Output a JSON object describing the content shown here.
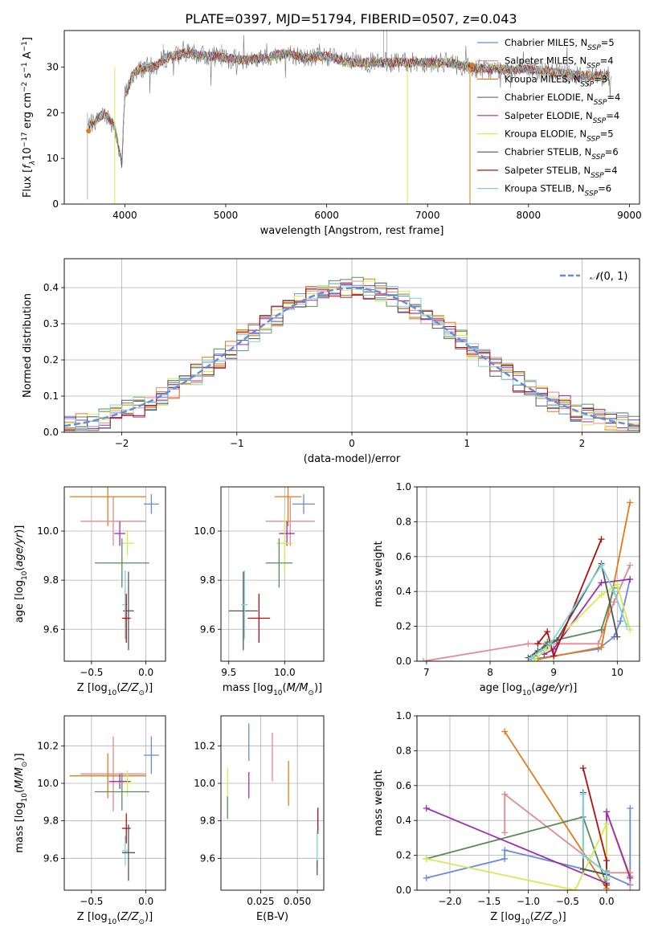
{
  "figure_title": "PLATE=0397, MJD=51794, FIBERID=0507, z=0.043",
  "colors": {
    "chabrier_miles": "#6a8bd8",
    "salpeter_miles": "#e08a93",
    "kroupa_miles": "#e07b1a",
    "chabrier_elodie": "#5a8a5a",
    "salpeter_elodie": "#9b30b0",
    "kroupa_elodie": "#d4ec50",
    "chabrier_stelib": "#555555",
    "salpeter_stelib": "#b01010",
    "kroupa_stelib": "#80d0d8",
    "normal": "#6a8bd8",
    "grid": "#b0b0b0"
  },
  "chart_data": [
    {
      "id": "spectrum",
      "type": "line",
      "title": "PLATE=0397, MJD=51794, FIBERID=0507, z=0.043",
      "xlabel": "wavelength [Angstrom, rest frame]",
      "ylabel": "Flux [f_λ 10^-17 erg cm^-2 s^-1 A^-1]",
      "xlim": [
        3400,
        9100
      ],
      "ylim": [
        0,
        38
      ],
      "xticks": [
        "4000",
        "5000",
        "6000",
        "7000",
        "8000",
        "9000"
      ],
      "yticks": [
        "0",
        "10",
        "20",
        "30"
      ],
      "grid": false,
      "legend_position": "upper-right",
      "spectrum_keypoints": {
        "x": [
          3630,
          3700,
          3800,
          3900,
          3970,
          4000,
          4100,
          4200,
          4300,
          4400,
          4600,
          4800,
          5000,
          5200,
          5400,
          5600,
          5800,
          6000,
          6200,
          6400,
          6600,
          6800,
          7000,
          7200,
          7400,
          7600,
          7800,
          8000,
          8200,
          8400,
          8600,
          8800
        ],
        "y": [
          17,
          18,
          20,
          17,
          9,
          24,
          29,
          30,
          30,
          32,
          33,
          32.5,
          32,
          31.5,
          32,
          33,
          32,
          32.5,
          31,
          31,
          31,
          31,
          31,
          31,
          30,
          29.5,
          29.5,
          29.5,
          29,
          28.5,
          28,
          28
        ]
      },
      "legend": [
        {
          "label": "Chabrier MILES, N",
          "sub": "SSP",
          "suffix": "=5",
          "color_key": "chabrier_miles"
        },
        {
          "label": "Salpeter MILES, N",
          "sub": "SSP",
          "suffix": "=4",
          "color_key": "salpeter_miles"
        },
        {
          "label": "Kroupa MILES, N",
          "sub": "SSP",
          "suffix": "=3",
          "color_key": "kroupa_miles"
        },
        {
          "label": "Chabrier ELODIE, N",
          "sub": "SSP",
          "suffix": "=4",
          "color_key": "chabrier_elodie"
        },
        {
          "label": "Salpeter ELODIE, N",
          "sub": "SSP",
          "suffix": "=4",
          "color_key": "salpeter_elodie"
        },
        {
          "label": "Kroupa ELODIE, N",
          "sub": "SSP",
          "suffix": "=5",
          "color_key": "kroupa_elodie"
        },
        {
          "label": "Chabrier STELIB, N",
          "sub": "SSP",
          "suffix": "=6",
          "color_key": "chabrier_stelib"
        },
        {
          "label": "Salpeter STELIB, N",
          "sub": "SSP",
          "suffix": "=4",
          "color_key": "salpeter_stelib"
        },
        {
          "label": "Kroupa STELIB, N",
          "sub": "SSP",
          "suffix": "=6",
          "color_key": "kroupa_stelib"
        }
      ]
    },
    {
      "id": "residuals",
      "type": "line",
      "xlabel": "(data-model)/error",
      "ylabel": "Normed distribution",
      "xlim": [
        -2.5,
        2.5
      ],
      "ylim": [
        0,
        0.48
      ],
      "xticks": [
        "−2",
        "−1",
        "0",
        "1",
        "2"
      ],
      "yticks": [
        "0.0",
        "0.1",
        "0.2",
        "0.3",
        "0.4"
      ],
      "grid": true,
      "legend": [
        {
          "label": "N(0,1)",
          "color_key": "normal"
        }
      ],
      "legend_position": "upper-right",
      "bin_width": 0.1
    },
    {
      "id": "age_vs_Z",
      "type": "scatter",
      "xlabel": "Z [log10(Z/Z⊙)]",
      "ylabel": "age [log10(age/yr)]",
      "xlim": [
        -0.75,
        0.18
      ],
      "ylim": [
        9.47,
        10.18
      ],
      "xticks": [
        "−0.5",
        "0.0"
      ],
      "yticks": [
        "9.6",
        "9.8",
        "10.0"
      ],
      "grid": true,
      "points": [
        {
          "c": "chabrier_miles",
          "x": 0.05,
          "y": 10.11,
          "xerr": 0.07,
          "yerr": 0.04
        },
        {
          "c": "kroupa_miles",
          "x": -0.35,
          "y": 10.14,
          "xerr": 0.35,
          "yerr": 0.12
        },
        {
          "c": "salpeter_miles",
          "x": -0.3,
          "y": 10.04,
          "xerr": 0.3,
          "yerr": 0.1
        },
        {
          "c": "salpeter_elodie",
          "x": -0.24,
          "y": 9.99,
          "xerr": 0.05,
          "yerr": 0.05
        },
        {
          "c": "kroupa_elodie",
          "x": -0.17,
          "y": 9.95,
          "xerr": 0.06,
          "yerr": 0.05
        },
        {
          "c": "chabrier_elodie",
          "x": -0.22,
          "y": 9.87,
          "xerr": 0.25,
          "yerr": 0.1
        },
        {
          "c": "chabrier_stelib",
          "x": -0.16,
          "y": 9.675,
          "xerr": 0.05,
          "yerr": 0.16
        },
        {
          "c": "kroupa_stelib",
          "x": -0.19,
          "y": 9.7,
          "xerr": 0.03,
          "yerr": 0.14
        },
        {
          "c": "salpeter_stelib",
          "x": -0.18,
          "y": 9.645,
          "xerr": 0.04,
          "yerr": 0.1
        }
      ]
    },
    {
      "id": "age_vs_mass",
      "type": "scatter",
      "xlabel": "mass [log10(M/M⊙)]",
      "ylabel": "",
      "xlim": [
        9.43,
        10.35
      ],
      "ylim": [
        9.47,
        10.18
      ],
      "xticks": [
        "9.5",
        "10.0"
      ],
      "yticks": [
        "9.6",
        "9.8",
        "10.0"
      ],
      "grid": true,
      "points": [
        {
          "c": "chabrier_miles",
          "x": 10.17,
          "y": 10.11,
          "xerr": 0.1,
          "yerr": 0.04
        },
        {
          "c": "kroupa_miles",
          "x": 10.03,
          "y": 10.14,
          "xerr": 0.12,
          "yerr": 0.12
        },
        {
          "c": "salpeter_miles",
          "x": 10.05,
          "y": 10.04,
          "xerr": 0.22,
          "yerr": 0.1
        },
        {
          "c": "salpeter_elodie",
          "x": 10.02,
          "y": 9.99,
          "xerr": 0.07,
          "yerr": 0.05
        },
        {
          "c": "kroupa_elodie",
          "x": 10.0,
          "y": 9.95,
          "xerr": 0.07,
          "yerr": 0.12
        },
        {
          "c": "chabrier_elodie",
          "x": 9.95,
          "y": 9.87,
          "xerr": 0.12,
          "yerr": 0.1
        },
        {
          "c": "chabrier_stelib",
          "x": 9.63,
          "y": 9.675,
          "xerr": 0.13,
          "yerr": 0.16
        },
        {
          "c": "kroupa_stelib",
          "x": 9.64,
          "y": 9.7,
          "xerr": 0.03,
          "yerr": 0.14
        },
        {
          "c": "salpeter_stelib",
          "x": 9.77,
          "y": 9.645,
          "xerr": 0.1,
          "yerr": 0.1
        }
      ]
    },
    {
      "id": "weight_vs_age",
      "type": "line",
      "xlabel": "age [log10(age/yr)]",
      "ylabel": "mass weight",
      "xlim": [
        6.85,
        10.35
      ],
      "ylim": [
        0,
        1.0
      ],
      "xticks": [
        "7",
        "8",
        "9",
        "10"
      ],
      "yticks": [
        "0.0",
        "0.2",
        "0.4",
        "0.6",
        "0.8",
        "1.0"
      ],
      "grid": true,
      "series": [
        {
          "c": "chabrier_miles",
          "x": [
            8.65,
            9.7,
            9.95,
            10.05,
            10.2
          ],
          "y": [
            0.01,
            0.07,
            0.14,
            0.23,
            0.47
          ]
        },
        {
          "c": "salpeter_miles",
          "x": [
            6.95,
            8.6,
            9.7,
            9.95,
            10.2
          ],
          "y": [
            0.0,
            0.1,
            0.1,
            0.34,
            0.55
          ]
        },
        {
          "c": "kroupa_miles",
          "x": [
            8.75,
            9.75,
            10.2
          ],
          "y": [
            0.01,
            0.08,
            0.91
          ]
        },
        {
          "c": "chabrier_elodie",
          "x": [
            8.7,
            8.9,
            9.75,
            9.95
          ],
          "y": [
            0.03,
            0.11,
            0.18,
            0.42
          ]
        },
        {
          "c": "salpeter_elodie",
          "x": [
            8.85,
            9.0,
            9.75,
            10.2
          ],
          "y": [
            0.04,
            0.07,
            0.45,
            0.47
          ]
        },
        {
          "c": "kroupa_elodie",
          "x": [
            8.7,
            8.9,
            9.75,
            10.0,
            10.2
          ],
          "y": [
            0.01,
            0.07,
            0.38,
            0.44,
            0.18
          ]
        },
        {
          "c": "chabrier_stelib",
          "x": [
            8.6,
            8.75,
            8.9,
            9.05,
            9.75,
            10.0
          ],
          "y": [
            0.02,
            0.06,
            0.09,
            0.12,
            0.56,
            0.14
          ]
        },
        {
          "c": "salpeter_stelib",
          "x": [
            8.75,
            8.9,
            9.0,
            9.75
          ],
          "y": [
            0.1,
            0.17,
            0.03,
            0.7
          ]
        },
        {
          "c": "kroupa_stelib",
          "x": [
            8.65,
            8.8,
            8.95,
            9.75,
            9.95,
            10.15
          ],
          "y": [
            0.02,
            0.06,
            0.1,
            0.55,
            0.4,
            0.2
          ]
        }
      ]
    },
    {
      "id": "mass_vs_Z",
      "type": "scatter",
      "xlabel": "Z [log10(Z/Z⊙)]",
      "ylabel": "mass [log10(M/M⊙)]",
      "xlim": [
        -0.75,
        0.18
      ],
      "ylim": [
        9.43,
        10.36
      ],
      "xticks": [
        "−0.5",
        "0.0"
      ],
      "yticks": [
        "9.6",
        "9.8",
        "10.0",
        "10.2"
      ],
      "grid": true,
      "points": [
        {
          "c": "chabrier_miles",
          "x": 0.05,
          "y": 10.15,
          "xerr": 0.07,
          "yerr": 0.1
        },
        {
          "c": "salpeter_miles",
          "x": -0.3,
          "y": 10.05,
          "xerr": 0.3,
          "yerr": 0.2
        },
        {
          "c": "kroupa_miles",
          "x": -0.35,
          "y": 10.04,
          "xerr": 0.35,
          "yerr": 0.12
        },
        {
          "c": "salpeter_elodie",
          "x": -0.24,
          "y": 10.01,
          "xerr": 0.1,
          "yerr": 0.04
        },
        {
          "c": "kroupa_elodie",
          "x": -0.17,
          "y": 10.0,
          "xerr": 0.07,
          "yerr": 0.07
        },
        {
          "c": "chabrier_elodie",
          "x": -0.22,
          "y": 9.955,
          "xerr": 0.25,
          "yerr": 0.1
        },
        {
          "c": "salpeter_stelib",
          "x": -0.18,
          "y": 9.76,
          "xerr": 0.04,
          "yerr": 0.08
        },
        {
          "c": "kroupa_stelib",
          "x": -0.19,
          "y": 9.64,
          "xerr": 0.03,
          "yerr": 0.08
        },
        {
          "c": "chabrier_stelib",
          "x": -0.16,
          "y": 9.63,
          "xerr": 0.06,
          "yerr": 0.15
        }
      ]
    },
    {
      "id": "mass_vs_EBV",
      "type": "scatter",
      "xlabel": "E(B-V)",
      "ylabel": "",
      "xlim": [
        -0.002,
        0.068
      ],
      "ylim": [
        9.43,
        10.36
      ],
      "xticks": [
        "0.025",
        "0.050"
      ],
      "yticks": [
        "9.6",
        "9.8",
        "10.0",
        "10.2"
      ],
      "grid": true,
      "points": [
        {
          "c": "chabrier_miles",
          "x": 0.017,
          "y": 10.22,
          "xerr": 0,
          "yerr": 0.1
        },
        {
          "c": "salpeter_miles",
          "x": 0.033,
          "y": 10.14,
          "xerr": 0,
          "yerr": 0.13
        },
        {
          "c": "kroupa_miles",
          "x": 0.044,
          "y": 10.0,
          "xerr": 0,
          "yerr": 0.12
        },
        {
          "c": "salpeter_elodie",
          "x": 0.017,
          "y": 9.99,
          "xerr": 0,
          "yerr": 0.07
        },
        {
          "c": "kroupa_elodie",
          "x": 0.0025,
          "y": 10.0,
          "xerr": 0,
          "yerr": 0.08
        },
        {
          "c": "chabrier_elodie",
          "x": 0.0025,
          "y": 9.87,
          "xerr": 0,
          "yerr": 0.06
        },
        {
          "c": "salpeter_stelib",
          "x": 0.064,
          "y": 9.8,
          "xerr": 0,
          "yerr": 0.07
        },
        {
          "c": "kroupa_stelib",
          "x": 0.0635,
          "y": 9.65,
          "xerr": 0,
          "yerr": 0.1
        },
        {
          "c": "chabrier_stelib",
          "x": 0.0635,
          "y": 9.55,
          "xerr": 0,
          "yerr": 0.04
        }
      ]
    },
    {
      "id": "weight_vs_Z",
      "type": "line",
      "xlabel": "Z [log10(Z/Z⊙)]",
      "ylabel": "mass weight",
      "xlim": [
        -2.42,
        0.42
      ],
      "ylim": [
        0,
        1.0
      ],
      "xticks": [
        "−2.0",
        "−1.5",
        "−1.0",
        "−0.5",
        "0.0"
      ],
      "yticks": [
        "0.0",
        "0.2",
        "0.4",
        "0.6",
        "0.8",
        "1.0"
      ],
      "grid": true,
      "series": [
        {
          "c": "chabrier_miles",
          "x": [
            -2.3,
            -1.3,
            -1.3,
            0.0,
            0.3,
            0.3
          ],
          "y": [
            0.07,
            0.18,
            0.23,
            0.09,
            0.03,
            0.47
          ]
        },
        {
          "c": "salpeter_miles",
          "x": [
            -1.3,
            -1.3,
            0.0,
            0.3,
            0.3
          ],
          "y": [
            0.33,
            0.55,
            0.1,
            0.1,
            0.0
          ]
        },
        {
          "c": "kroupa_miles",
          "x": [
            -1.3,
            0.0,
            0.0,
            0.3
          ],
          "y": [
            0.91,
            0.01,
            0.45,
            0.08
          ]
        },
        {
          "c": "chabrier_elodie",
          "x": [
            -2.3,
            -0.3,
            0.0,
            0.0
          ],
          "y": [
            0.18,
            0.42,
            0.03,
            0.11
          ]
        },
        {
          "c": "salpeter_elodie",
          "x": [
            -2.3,
            0.0,
            0.0,
            0.3
          ],
          "y": [
            0.47,
            0.04,
            0.45,
            0.07
          ]
        },
        {
          "c": "kroupa_elodie",
          "x": [
            -2.3,
            -0.4,
            0.0,
            0.0
          ],
          "y": [
            0.18,
            0.0,
            0.38,
            0.07
          ]
        },
        {
          "c": "chabrier_stelib",
          "x": [
            -0.3,
            -0.3,
            0.0,
            0.0
          ],
          "y": [
            0.56,
            0.12,
            0.09,
            0.06
          ]
        },
        {
          "c": "salpeter_stelib",
          "x": [
            -0.3,
            0.0,
            0.0
          ],
          "y": [
            0.7,
            0.17,
            0.03
          ]
        },
        {
          "c": "kroupa_stelib",
          "x": [
            -0.3,
            -0.3,
            0.0,
            0.0
          ],
          "y": [
            0.55,
            0.2,
            0.1,
            0.06
          ]
        }
      ]
    }
  ]
}
